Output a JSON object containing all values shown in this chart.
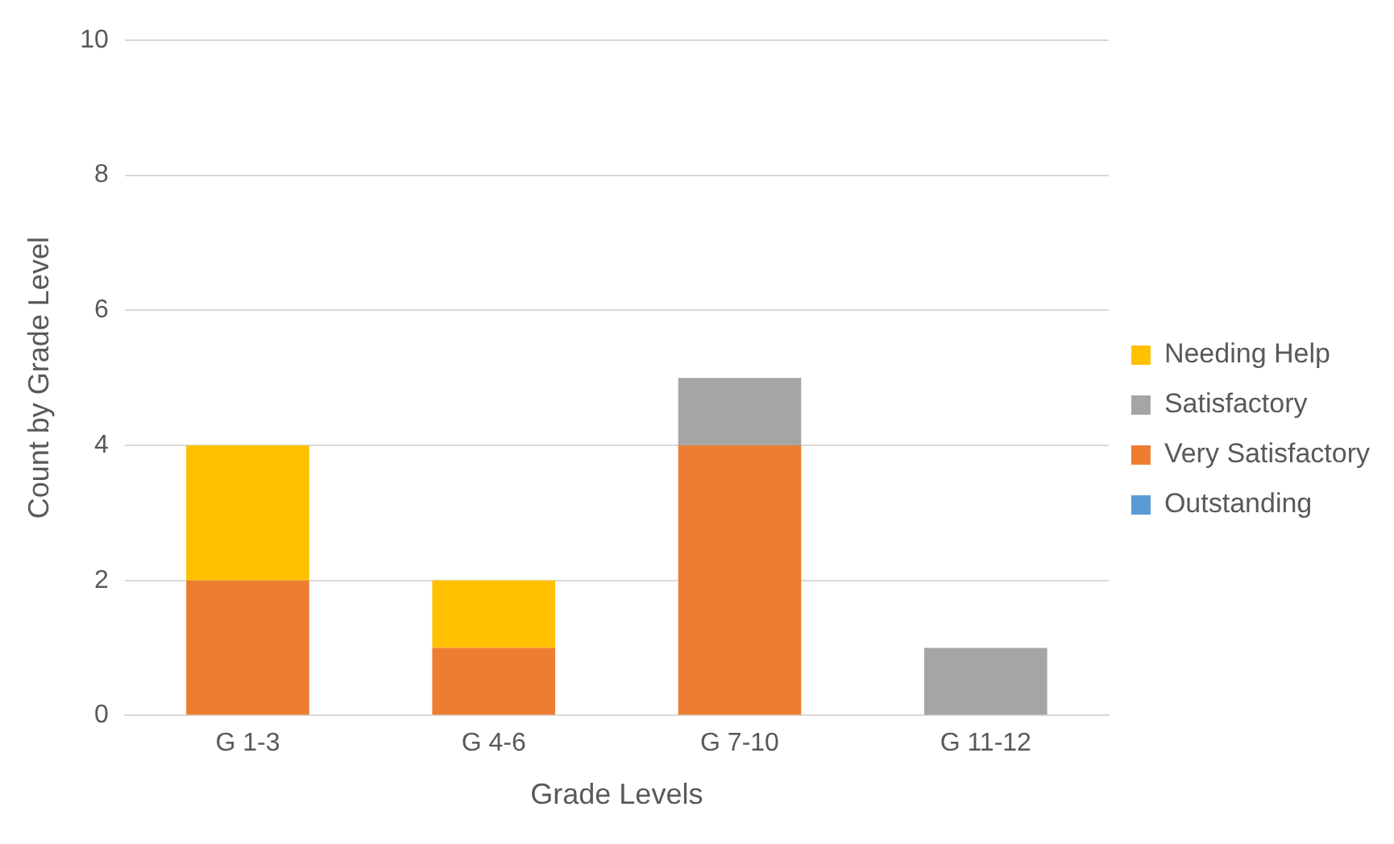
{
  "chart_data": {
    "type": "bar",
    "stacked": true,
    "xlabel": "Grade Levels",
    "ylabel": "Count by Grade Level",
    "categories": [
      "G 1-3",
      "G 4-6",
      "G 7-10",
      "G 11-12"
    ],
    "series": [
      {
        "name": "Outstanding",
        "color": "#5b9bd5",
        "values": [
          0,
          0,
          0,
          0
        ]
      },
      {
        "name": "Very Satisfactory",
        "color": "#ed7d31",
        "values": [
          2,
          1,
          4,
          0
        ]
      },
      {
        "name": "Satisfactory",
        "color": "#a5a5a5",
        "values": [
          0,
          0,
          1,
          1
        ]
      },
      {
        "name": "Needing Help",
        "color": "#ffc000",
        "values": [
          2,
          1,
          0,
          0
        ]
      }
    ],
    "ylim": [
      0,
      10
    ],
    "yticks": [
      0,
      2,
      4,
      6,
      8,
      10
    ],
    "grid": "y",
    "legend": "right"
  }
}
